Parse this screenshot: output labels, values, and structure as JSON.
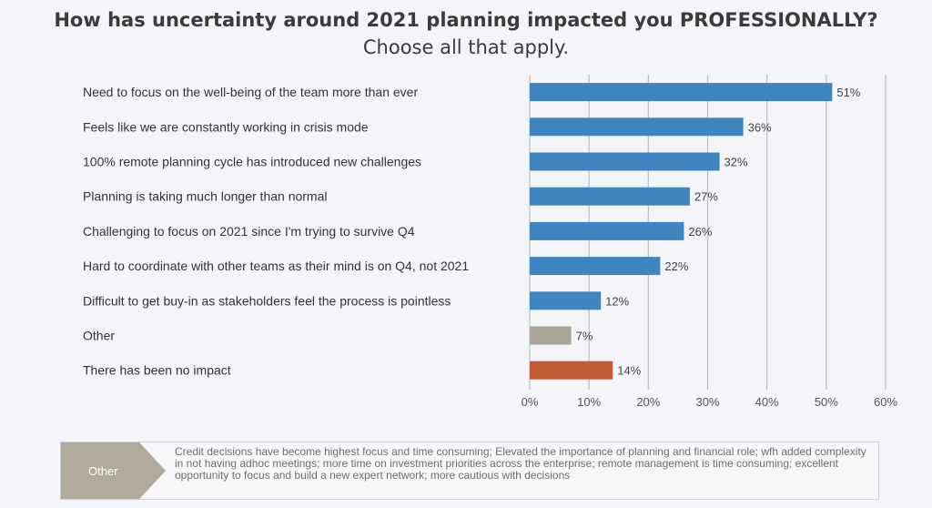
{
  "title": "How has uncertainty around 2021 planning impacted you PROFESSIONALLY?",
  "subtitle": "Choose all that apply.",
  "chart_data": {
    "type": "bar",
    "orientation": "horizontal",
    "categories": [
      "Need to focus on the well-being of the team more than ever",
      "Feels like we are constantly working in crisis mode",
      "100% remote planning cycle has introduced new challenges",
      "Planning is taking much longer than normal",
      "Challenging to focus on 2021 since I'm trying to survive Q4",
      "Hard to coordinate with other teams as their mind is on Q4, not 2021",
      "Difficult to get buy-in as stakeholders feel the process is pointless",
      "Other",
      "There has been no impact"
    ],
    "values": [
      51,
      36,
      32,
      27,
      26,
      22,
      12,
      7,
      14
    ],
    "value_labels": [
      "51%",
      "36%",
      "32%",
      "27%",
      "26%",
      "22%",
      "12%",
      "7%",
      "14%"
    ],
    "bar_colors": [
      "#3f86c0",
      "#3f86c0",
      "#3f86c0",
      "#3f86c0",
      "#3f86c0",
      "#3f86c0",
      "#3f86c0",
      "#aaa597",
      "#c25a34"
    ],
    "xlim": [
      0,
      60
    ],
    "x_ticks": [
      "0%",
      "10%",
      "20%",
      "30%",
      "40%",
      "50%",
      "60%"
    ],
    "grid": true,
    "xlabel": "",
    "ylabel": ""
  },
  "note": {
    "tag": "Other",
    "text": "Credit decisions have become highest focus and time consuming; Elevated the importance of planning and financial role; wfh added complexity in not having adhoc meetings; more time on investment priorities across the enterprise; remote management is time consuming; excellent opportunity to focus and build a new expert network; more cautious with decisions"
  }
}
